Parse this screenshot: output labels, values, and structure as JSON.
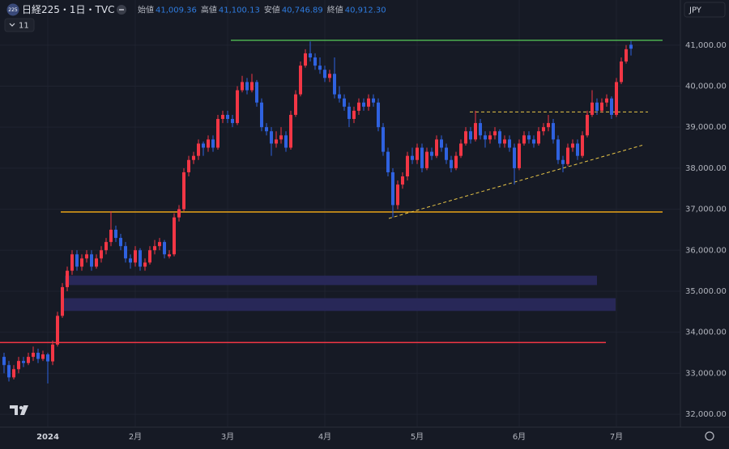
{
  "chart_data": {
    "type": "candlestick",
    "title": "日経225・1日・TVC",
    "symbol_badge": "225",
    "indicator_count": "11",
    "currency": "JPY",
    "ohlc_labels": [
      "始値",
      "高値",
      "安値",
      "終値"
    ],
    "ohlc_value_labels": [
      "41,009.36",
      "41,100.13",
      "40,746.89",
      "40,912.30"
    ],
    "up_color": "#f23645",
    "down_color": "#2f62e0",
    "grid": true,
    "ylim": [
      31686,
      42100
    ],
    "yticks": [
      {
        "value": 32000,
        "label": "32,000.00"
      },
      {
        "value": 33000,
        "label": "33,000.00"
      },
      {
        "value": 34000,
        "label": "34,000.00"
      },
      {
        "value": 35000,
        "label": "35,000.00"
      },
      {
        "value": 36000,
        "label": "36,000.00"
      },
      {
        "value": 37000,
        "label": "37,000.00"
      },
      {
        "value": 38000,
        "label": "38,000.00"
      },
      {
        "value": 39000,
        "label": "39,000.00"
      },
      {
        "value": 40000,
        "label": "40,000.00"
      },
      {
        "value": 41000,
        "label": "41,000.00"
      }
    ],
    "categories": [
      null,
      null,
      null,
      null,
      null,
      null,
      null,
      null,
      null,
      "2024",
      null,
      null,
      null,
      null,
      null,
      null,
      null,
      null,
      null,
      null,
      null,
      null,
      null,
      null,
      null,
      null,
      null,
      "2月",
      null,
      null,
      null,
      null,
      null,
      null,
      null,
      null,
      null,
      null,
      null,
      null,
      null,
      null,
      null,
      null,
      null,
      null,
      "3月",
      null,
      null,
      null,
      null,
      null,
      null,
      null,
      null,
      null,
      null,
      null,
      null,
      null,
      null,
      null,
      null,
      null,
      null,
      null,
      "4月",
      null,
      null,
      null,
      null,
      null,
      null,
      null,
      null,
      null,
      null,
      null,
      null,
      null,
      null,
      null,
      null,
      null,
      null,
      "5月",
      null,
      null,
      null,
      null,
      null,
      null,
      null,
      null,
      null,
      null,
      null,
      null,
      null,
      null,
      null,
      null,
      null,
      null,
      null,
      null,
      "6月",
      null,
      null,
      null,
      null,
      null,
      null,
      null,
      null,
      null,
      null,
      null,
      null,
      null,
      null,
      null,
      null,
      null,
      null,
      null,
      "7月",
      null,
      null,
      null
    ],
    "candles": [
      [
        33400,
        33500,
        33000,
        33200
      ],
      [
        33200,
        33300,
        32800,
        32900
      ],
      [
        32900,
        33200,
        32850,
        33100
      ],
      [
        33100,
        33400,
        33000,
        33300
      ],
      [
        33300,
        33400,
        33150,
        33250
      ],
      [
        33250,
        33500,
        33200,
        33400
      ],
      [
        33400,
        33650,
        33300,
        33500
      ],
      [
        33500,
        33600,
        33250,
        33350
      ],
      [
        33350,
        33550,
        33300,
        33460
      ],
      [
        33460,
        33500,
        32750,
        33290
      ],
      [
        33290,
        33800,
        33200,
        33700
      ],
      [
        33700,
        34500,
        33650,
        34400
      ],
      [
        34400,
        35200,
        34350,
        35100
      ],
      [
        35100,
        35600,
        35000,
        35500
      ],
      [
        35500,
        36000,
        35400,
        35900
      ],
      [
        35900,
        36000,
        35500,
        35600
      ],
      [
        35600,
        35900,
        35500,
        35800
      ],
      [
        35800,
        36000,
        35700,
        35900
      ],
      [
        35900,
        36000,
        35500,
        35600
      ],
      [
        35600,
        35900,
        35550,
        35800
      ],
      [
        35800,
        36100,
        35700,
        36000
      ],
      [
        36000,
        36300,
        35900,
        36200
      ],
      [
        36200,
        36950,
        36100,
        36500
      ],
      [
        36500,
        36600,
        36200,
        36300
      ],
      [
        36300,
        36400,
        36000,
        36100
      ],
      [
        36100,
        36200,
        35700,
        35800
      ],
      [
        35800,
        35900,
        35550,
        35700
      ],
      [
        35700,
        36100,
        35600,
        36000
      ],
      [
        36000,
        36050,
        35500,
        35600
      ],
      [
        35600,
        35800,
        35500,
        35700
      ],
      [
        35700,
        36100,
        35650,
        36000
      ],
      [
        36000,
        36250,
        35900,
        36100
      ],
      [
        36100,
        36300,
        36000,
        36200
      ],
      [
        36200,
        36250,
        35800,
        35900
      ],
      [
        35850,
        36000,
        35800,
        35900
      ],
      [
        35900,
        36900,
        35850,
        36800
      ],
      [
        36800,
        37100,
        36700,
        37000
      ],
      [
        37000,
        38000,
        36950,
        37900
      ],
      [
        37900,
        38300,
        37800,
        38200
      ],
      [
        38200,
        38400,
        38100,
        38300
      ],
      [
        38300,
        38700,
        38200,
        38600
      ],
      [
        38600,
        38650,
        38300,
        38500
      ],
      [
        38500,
        38800,
        38400,
        38700
      ],
      [
        38700,
        38800,
        38400,
        38500
      ],
      [
        38500,
        39300,
        38450,
        39200
      ],
      [
        39200,
        39400,
        39100,
        39300
      ],
      [
        39300,
        39400,
        39100,
        39200
      ],
      [
        39200,
        39300,
        39000,
        39100
      ],
      [
        39100,
        40000,
        39050,
        39900
      ],
      [
        39900,
        40250,
        39850,
        40100
      ],
      [
        40100,
        40200,
        39800,
        39900
      ],
      [
        39900,
        40300,
        39850,
        40100
      ],
      [
        40100,
        40150,
        39500,
        39600
      ],
      [
        39600,
        39700,
        38900,
        39000
      ],
      [
        39000,
        39100,
        38800,
        38900
      ],
      [
        38900,
        39000,
        38300,
        38600
      ],
      [
        38600,
        38900,
        38500,
        38700
      ],
      [
        38700,
        39000,
        38600,
        38800
      ],
      [
        38800,
        38900,
        38400,
        38500
      ],
      [
        38500,
        39400,
        38450,
        39300
      ],
      [
        39300,
        39900,
        39250,
        39800
      ],
      [
        39800,
        40600,
        39750,
        40500
      ],
      [
        40500,
        40900,
        40450,
        40800
      ],
      [
        40800,
        41090,
        40600,
        40700
      ],
      [
        40700,
        40800,
        40400,
        40500
      ],
      [
        40500,
        40700,
        40300,
        40400
      ],
      [
        40400,
        40500,
        40100,
        40200
      ],
      [
        40200,
        40400,
        40100,
        40300
      ],
      [
        40300,
        40700,
        39700,
        39800
      ],
      [
        39800,
        40000,
        39600,
        39700
      ],
      [
        39700,
        39800,
        39400,
        39500
      ],
      [
        39500,
        39600,
        39000,
        39200
      ],
      [
        39200,
        39500,
        39100,
        39400
      ],
      [
        39400,
        39700,
        39300,
        39600
      ],
      [
        39600,
        39700,
        39400,
        39500
      ],
      [
        39500,
        39800,
        39400,
        39700
      ],
      [
        39700,
        39800,
        39500,
        39600
      ],
      [
        39600,
        39700,
        38900,
        39000
      ],
      [
        39000,
        39100,
        38300,
        38400
      ],
      [
        38400,
        38500,
        37800,
        37900
      ],
      [
        37900,
        38000,
        36800,
        37100
      ],
      [
        37100,
        37700,
        37000,
        37600
      ],
      [
        37600,
        37900,
        37500,
        37800
      ],
      [
        37800,
        38400,
        37700,
        38300
      ],
      [
        38300,
        38500,
        38100,
        38200
      ],
      [
        38200,
        38600,
        38100,
        38500
      ],
      [
        38500,
        38600,
        37900,
        38000
      ],
      [
        38000,
        38500,
        37950,
        38400
      ],
      [
        38400,
        38500,
        38200,
        38300
      ],
      [
        38300,
        38800,
        38250,
        38700
      ],
      [
        38700,
        38800,
        38400,
        38500
      ],
      [
        38500,
        38600,
        38100,
        38200
      ],
      [
        38200,
        38300,
        37900,
        38000
      ],
      [
        38000,
        38400,
        37950,
        38300
      ],
      [
        38300,
        38700,
        38250,
        38600
      ],
      [
        38600,
        39000,
        38550,
        38900
      ],
      [
        38900,
        39000,
        38600,
        38700
      ],
      [
        38700,
        39400,
        38650,
        39100
      ],
      [
        39100,
        39200,
        38700,
        38800
      ],
      [
        38800,
        38900,
        38500,
        38700
      ],
      [
        38700,
        38900,
        38600,
        38800
      ],
      [
        38800,
        39000,
        38700,
        38900
      ],
      [
        38900,
        38950,
        38500,
        38600
      ],
      [
        38600,
        38800,
        38500,
        38700
      ],
      [
        38700,
        38800,
        38400,
        38500
      ],
      [
        38500,
        38600,
        37600,
        38000
      ],
      [
        38000,
        38700,
        37950,
        38600
      ],
      [
        38600,
        38900,
        38550,
        38800
      ],
      [
        38800,
        38900,
        38600,
        38700
      ],
      [
        38700,
        38800,
        38500,
        38600
      ],
      [
        38600,
        39000,
        38550,
        38900
      ],
      [
        38900,
        39100,
        38800,
        39000
      ],
      [
        39000,
        39300,
        38900,
        39100
      ],
      [
        39100,
        39200,
        38600,
        38700
      ],
      [
        38700,
        38800,
        38100,
        38200
      ],
      [
        38200,
        38300,
        37900,
        38100
      ],
      [
        38100,
        38600,
        38050,
        38500
      ],
      [
        38500,
        38700,
        38400,
        38600
      ],
      [
        38600,
        38700,
        38200,
        38300
      ],
      [
        38300,
        38900,
        38250,
        38800
      ],
      [
        38800,
        39400,
        38750,
        39300
      ],
      [
        39300,
        39900,
        39250,
        39600
      ],
      [
        39600,
        39700,
        39300,
        39400
      ],
      [
        39400,
        39700,
        39350,
        39600
      ],
      [
        39600,
        39800,
        39500,
        39700
      ],
      [
        39700,
        39750,
        39200,
        39300
      ],
      [
        39300,
        40200,
        39250,
        40100
      ],
      [
        40100,
        40700,
        40050,
        40600
      ],
      [
        40600,
        41000,
        40550,
        40900
      ],
      [
        41009.36,
        41100.13,
        40746.89,
        40912.3
      ]
    ],
    "levels": [
      {
        "value": 41118,
        "color": "#4caf50"
      },
      {
        "value": 36932,
        "color": "#e8a317"
      },
      {
        "value": 33750,
        "color": "#f23645"
      }
    ],
    "zones": [
      {
        "top": 35380,
        "bottom": 35150,
        "color": "#2a2a5e"
      },
      {
        "top": 34830,
        "bottom": 34520,
        "color": "#2a2a5e"
      }
    ],
    "dashed_lines": [
      {
        "values": [
          36775,
          38560
        ],
        "color": "#e8c547"
      },
      {
        "values": [
          39370,
          39370
        ],
        "color": "#e8c547"
      }
    ]
  }
}
